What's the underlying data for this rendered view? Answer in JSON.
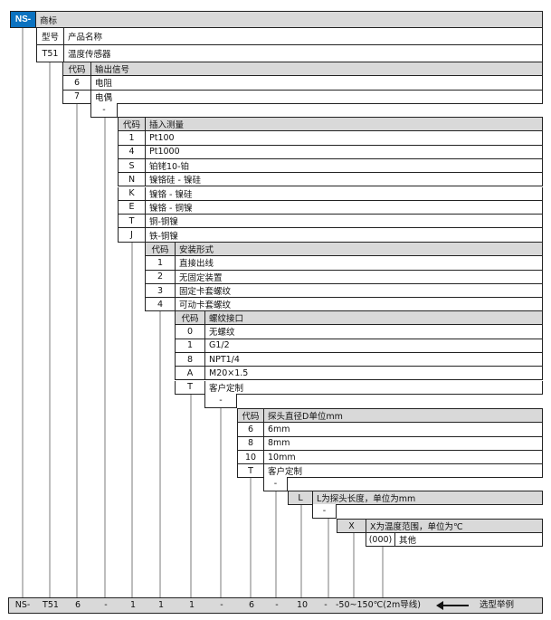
{
  "brand": {
    "code": "NS-",
    "label": "商标",
    "code_color": "#0b72c0"
  },
  "tables": [
    {
      "id": "model",
      "header": {
        "code": "型号",
        "label": "产品名称"
      },
      "header_gray": false,
      "rows": [
        {
          "code": "T51",
          "label": "温度传感器"
        }
      ]
    },
    {
      "id": "output-signal",
      "header": {
        "code": "代码",
        "label": "输出信号"
      },
      "header_gray": true,
      "rows": [
        {
          "code": "6",
          "label": "电阻"
        },
        {
          "code": "7",
          "label": "电偶"
        }
      ]
    },
    {
      "id": "sensor-type",
      "header": {
        "code": "代码",
        "label": "插入测量"
      },
      "header_gray": true,
      "rows": [
        {
          "code": "1",
          "label": "Pt100"
        },
        {
          "code": "4",
          "label": "Pt1000"
        },
        {
          "code": "S",
          "label": "铂铑10-铂"
        },
        {
          "code": "N",
          "label": "镍铬硅 - 镍硅"
        },
        {
          "code": "K",
          "label": "镍铬 - 镍硅"
        },
        {
          "code": "E",
          "label": "镍铬 - 铜镍"
        },
        {
          "code": "T",
          "label": "铜-铜镍"
        },
        {
          "code": "J",
          "label": "铁-铜镍"
        }
      ]
    },
    {
      "id": "mounting",
      "header": {
        "code": "代码",
        "label": "安装形式"
      },
      "header_gray": true,
      "rows": [
        {
          "code": "1",
          "label": "直接出线"
        },
        {
          "code": "2",
          "label": "无固定装置"
        },
        {
          "code": "3",
          "label": "固定卡套螺纹"
        },
        {
          "code": "4",
          "label": "可动卡套螺纹"
        }
      ]
    },
    {
      "id": "thread",
      "header": {
        "code": "代码",
        "label": "螺纹接口"
      },
      "header_gray": true,
      "rows": [
        {
          "code": "0",
          "label": "无螺纹"
        },
        {
          "code": "1",
          "label": "G1/2"
        },
        {
          "code": "8",
          "label": "NPT1/4"
        },
        {
          "code": "A",
          "label": "M20×1.5"
        },
        {
          "code": "T",
          "label": "客户定制"
        }
      ]
    },
    {
      "id": "diameter",
      "header": {
        "code": "代码",
        "label": "探头直径D单位mm"
      },
      "header_gray": true,
      "rows": [
        {
          "code": "6",
          "label": "6mm"
        },
        {
          "code": "8",
          "label": "8mm"
        },
        {
          "code": "10",
          "label": "10mm"
        },
        {
          "code": "T",
          "label": "客户定制"
        }
      ]
    },
    {
      "id": "length",
      "header": {
        "code": "L",
        "label": "L为探头长度，单位为mm"
      },
      "header_gray": true,
      "rows": []
    },
    {
      "id": "temp-range",
      "header": {
        "code": "X",
        "label": "X为温度范围，单位为℃"
      },
      "header_gray": true,
      "rows": []
    },
    {
      "id": "other",
      "header": null,
      "header_gray": false,
      "rows": [
        {
          "code": "(000)",
          "label": "其他"
        }
      ]
    }
  ],
  "separators": [
    "-",
    "-",
    "-",
    "-"
  ],
  "example": {
    "parts": [
      "NS-",
      "T51",
      "6",
      "-",
      "1",
      "1",
      "1",
      "-",
      "6",
      "-",
      "10",
      "-",
      "-50~150℃(2m导线)"
    ],
    "label": "选型举例"
  }
}
